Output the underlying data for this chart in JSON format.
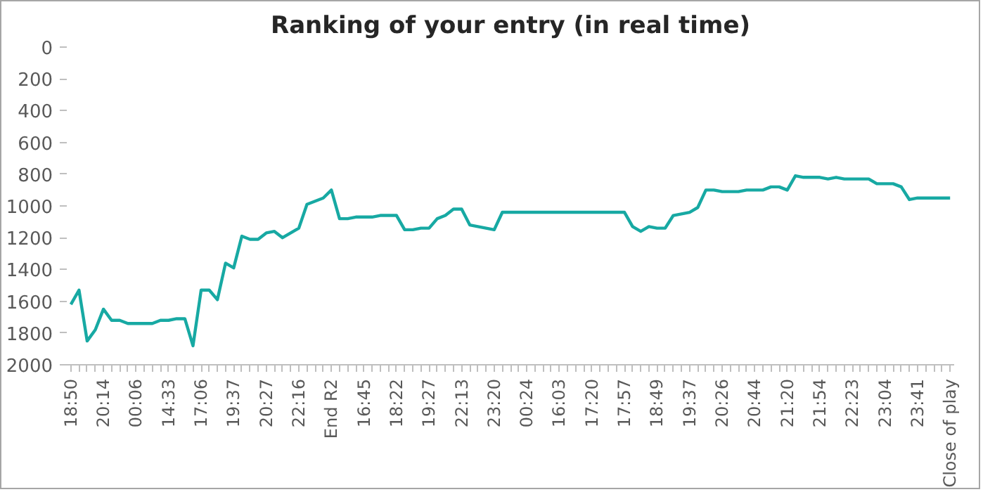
{
  "chart_data": {
    "type": "line",
    "title": "Ranking of your entry (in real time)",
    "categories": [
      "18:50",
      null,
      null,
      null,
      "20:14",
      null,
      null,
      null,
      "00:06",
      null,
      null,
      null,
      "14:33",
      null,
      null,
      null,
      "17:06",
      null,
      null,
      null,
      "19:37",
      null,
      null,
      null,
      "20:27",
      null,
      null,
      null,
      "22:16",
      null,
      null,
      null,
      "End R2",
      null,
      null,
      null,
      "16:45",
      null,
      null,
      null,
      "18:22",
      null,
      null,
      null,
      "19:27",
      null,
      null,
      null,
      "22:13",
      null,
      null,
      null,
      "23:20",
      null,
      null,
      null,
      "00:24",
      null,
      null,
      null,
      "16:03",
      null,
      null,
      null,
      "17:20",
      null,
      null,
      null,
      "17:57",
      null,
      null,
      null,
      "18:49",
      null,
      null,
      null,
      "19:37",
      null,
      null,
      null,
      "20:26",
      null,
      null,
      null,
      "20:44",
      null,
      null,
      null,
      "21:20",
      null,
      null,
      null,
      "21:54",
      null,
      null,
      null,
      "22:23",
      null,
      null,
      null,
      "23:04",
      null,
      null,
      null,
      "23:41",
      null,
      null,
      null,
      "Close of play"
    ],
    "series": [
      {
        "color": "#17a9a3",
        "values": [
          1620,
          1530,
          1850,
          1780,
          1650,
          1720,
          1720,
          1740,
          1740,
          1740,
          1740,
          1720,
          1720,
          1710,
          1710,
          1880,
          1530,
          1530,
          1590,
          1360,
          1390,
          1190,
          1210,
          1210,
          1170,
          1160,
          1200,
          1170,
          1140,
          990,
          970,
          950,
          900,
          1080,
          1080,
          1070,
          1070,
          1070,
          1060,
          1060,
          1060,
          1150,
          1150,
          1140,
          1140,
          1080,
          1060,
          1020,
          1020,
          1120,
          1130,
          1140,
          1150,
          1040,
          1040,
          1040,
          1040,
          1040,
          1040,
          1040,
          1040,
          1040,
          1040,
          1040,
          1040,
          1040,
          1040,
          1040,
          1040,
          1130,
          1160,
          1130,
          1140,
          1140,
          1060,
          1050,
          1040,
          1010,
          900,
          900,
          910,
          910,
          910,
          900,
          900,
          900,
          880,
          880,
          900,
          810,
          820,
          820,
          820,
          830,
          820,
          830,
          830,
          830,
          830,
          860,
          860,
          860,
          880,
          960,
          950,
          950,
          950,
          950,
          950
        ]
      }
    ],
    "ylim": [
      2000,
      0
    ],
    "yticks": [
      0,
      200,
      400,
      600,
      800,
      1000,
      1200,
      1400,
      1600,
      1800,
      2000
    ]
  }
}
